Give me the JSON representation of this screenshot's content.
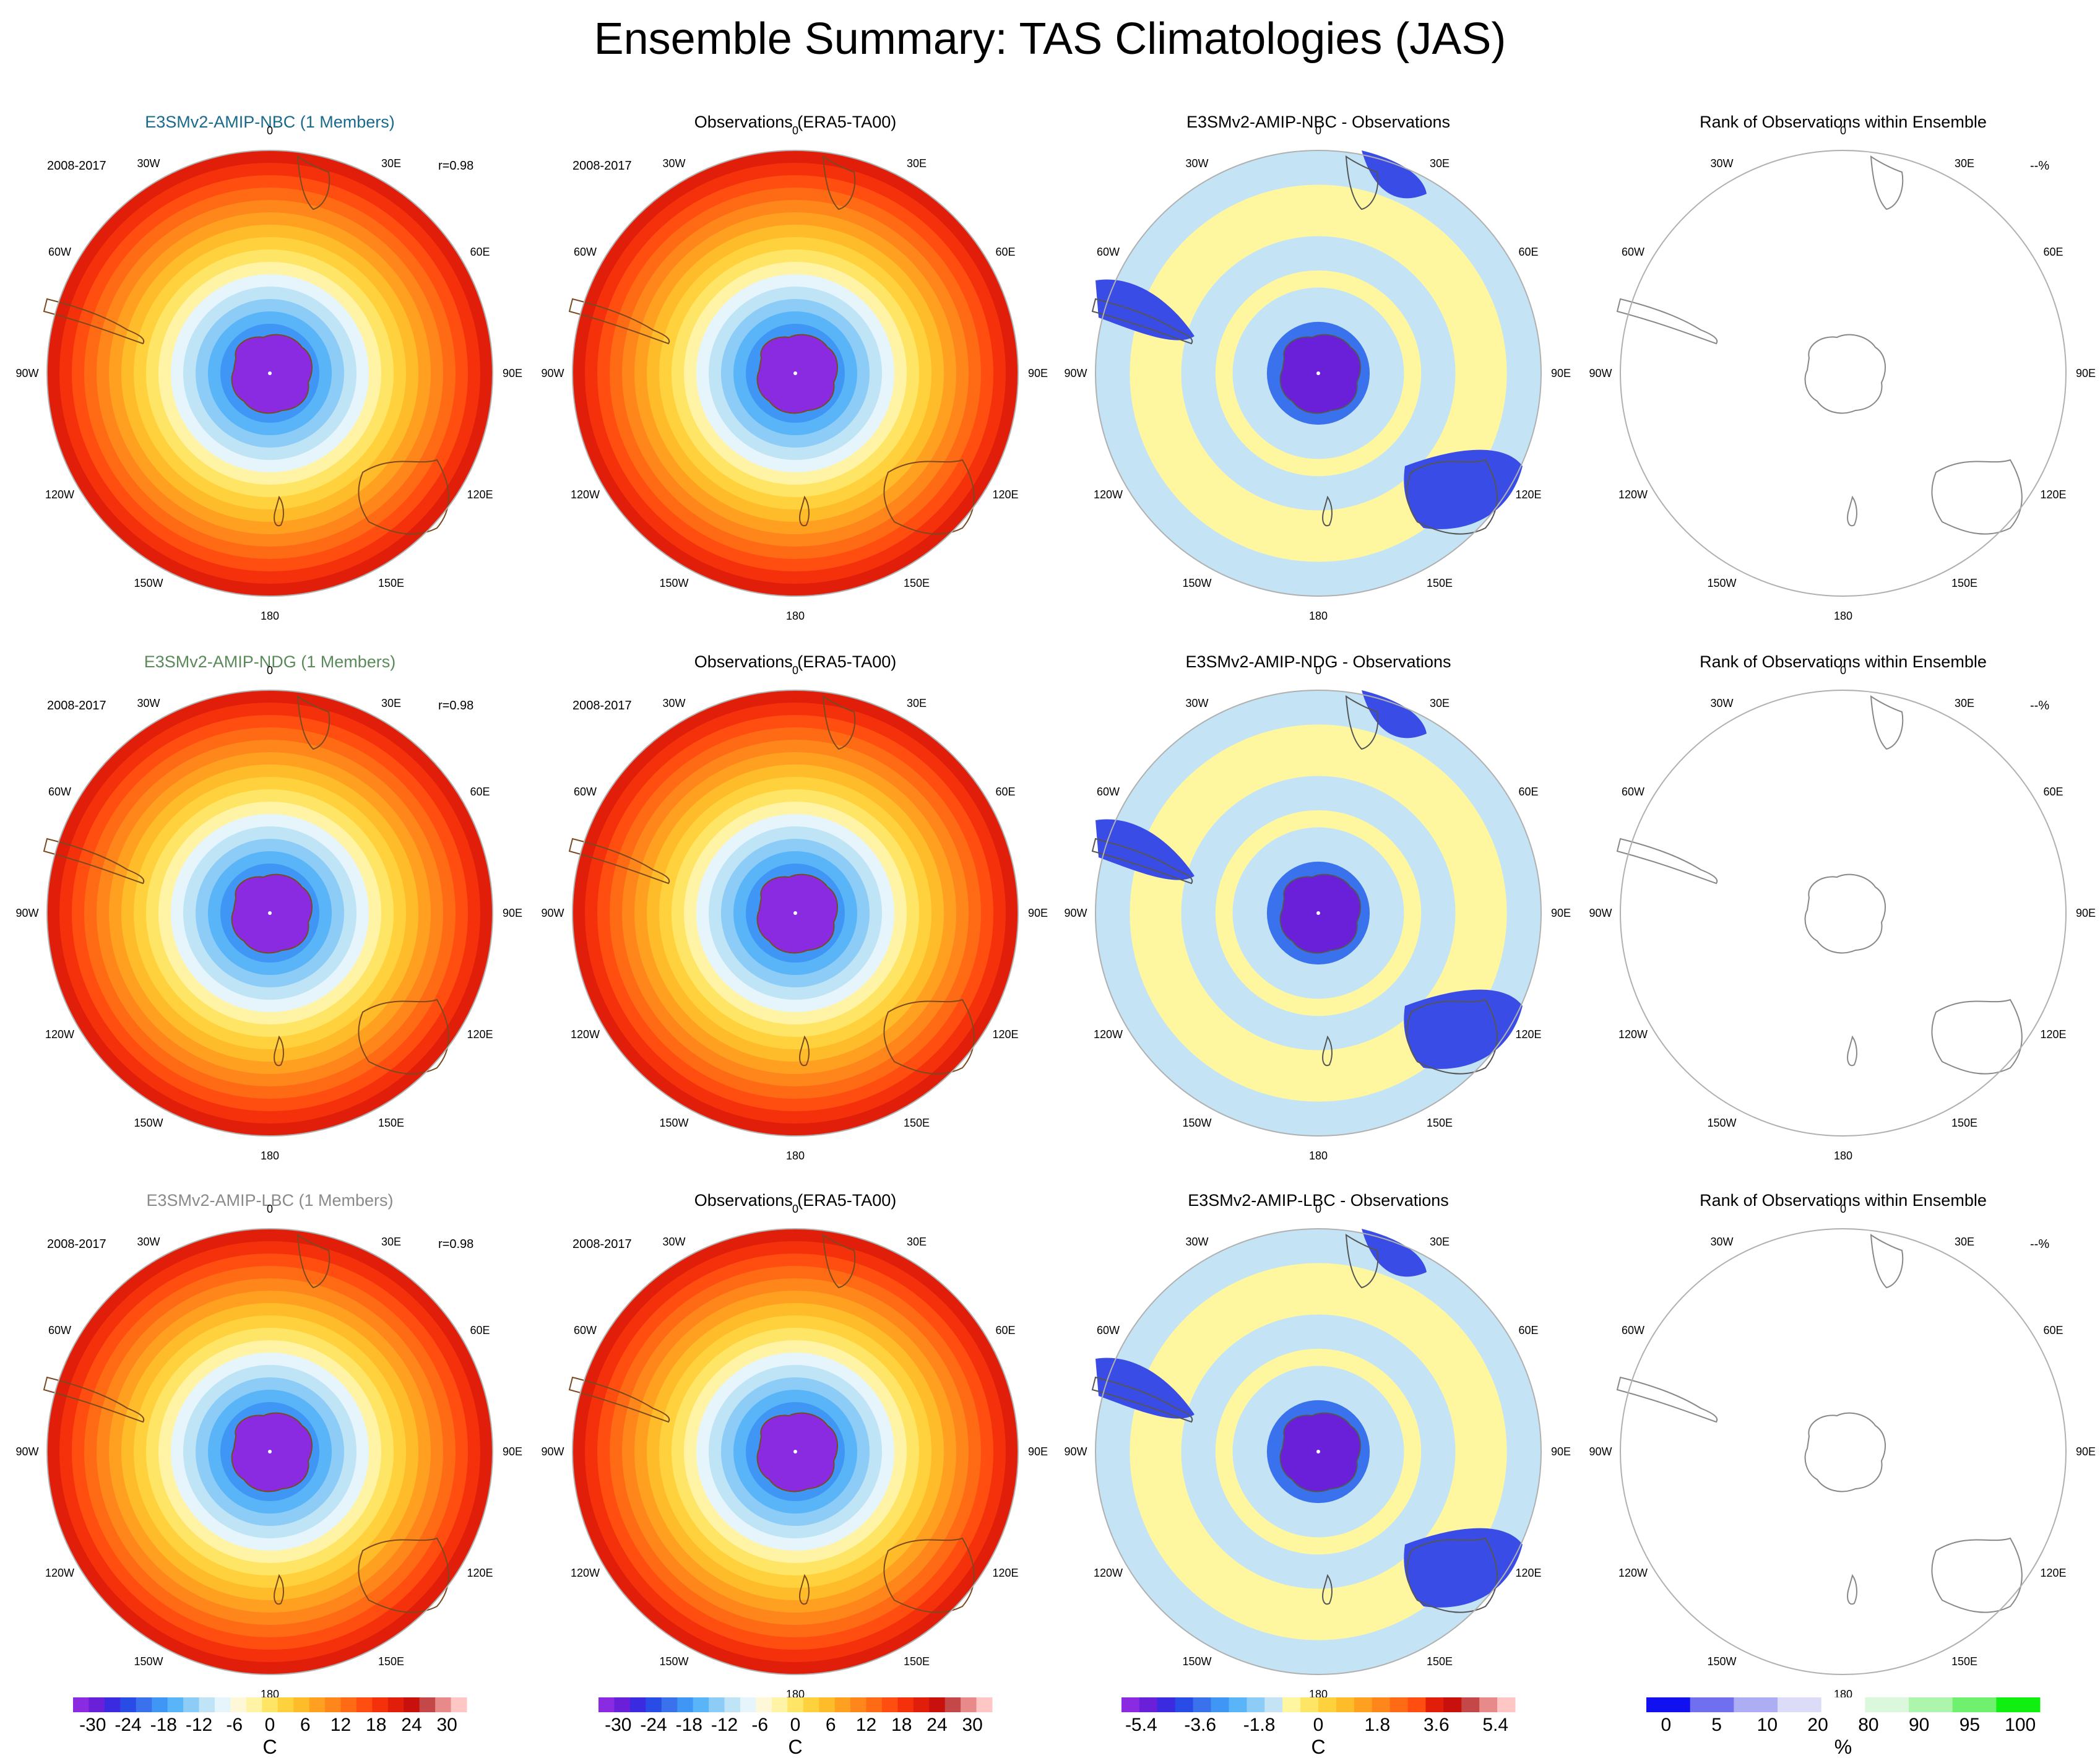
{
  "figure": {
    "title": "Ensemble Summary: TAS Climatologies (JAS)",
    "lon_labels": [
      "0",
      "30E",
      "60E",
      "90E",
      "120E",
      "150E",
      "180",
      "150W",
      "120W",
      "90W",
      "60W",
      "30W"
    ],
    "rows": [
      {
        "model_title": "E3SMv2-AMIP-NBC (1 Members)",
        "model_title_color": "#1a6a8c",
        "period": "2008-2017",
        "correlation": "r=0.98",
        "obs_title": "Observations (ERA5-TA00)",
        "obs_period": "2008-2017",
        "diff_title": "E3SMv2-AMIP-NBC - Observations",
        "rank_title": "Rank of Observations within Ensemble",
        "rank_value": "--%"
      },
      {
        "model_title": "E3SMv2-AMIP-NDG (1 Members)",
        "model_title_color": "#5a8a5a",
        "period": "2008-2017",
        "correlation": "r=0.98",
        "obs_title": "Observations (ERA5-TA00)",
        "obs_period": "2008-2017",
        "diff_title": "E3SMv2-AMIP-NDG - Observations",
        "rank_title": "Rank of Observations within Ensemble",
        "rank_value": "--%"
      },
      {
        "model_title": "E3SMv2-AMIP-LBC (1 Members)",
        "model_title_color": "#8a8a8a",
        "period": "2008-2017",
        "correlation": "r=0.98",
        "obs_title": "Observations (ERA5-TA00)",
        "obs_period": "2008-2017",
        "diff_title": "E3SMv2-AMIP-LBC - Observations",
        "rank_title": "Rank of Observations within Ensemble",
        "rank_value": "--%"
      }
    ],
    "colorbars": [
      {
        "unit": "C",
        "labels": [
          "-30",
          "-24",
          "-18",
          "-12",
          "-6",
          "0",
          "6",
          "12",
          "18",
          "24",
          "30"
        ],
        "colors": [
          "#8a2be2",
          "#6a1fd9",
          "#3a2ae0",
          "#2a4ce6",
          "#3a72ee",
          "#3f96f4",
          "#5ab4f8",
          "#8dccf6",
          "#bfe4f6",
          "#e6f4fb",
          "#fff8d8",
          "#fff3a6",
          "#ffe566",
          "#ffd23d",
          "#ffbc2a",
          "#ffa020",
          "#ff861a",
          "#ff6a14",
          "#ff4e10",
          "#f5310c",
          "#e01e0a",
          "#c8100c",
          "#c44848",
          "#e88a8a",
          "#ffc6c6"
        ]
      },
      {
        "unit": "C",
        "labels": [
          "-30",
          "-24",
          "-18",
          "-12",
          "-6",
          "0",
          "6",
          "12",
          "18",
          "24",
          "30"
        ],
        "colors": [
          "#8a2be2",
          "#6a1fd9",
          "#3a2ae0",
          "#2a4ce6",
          "#3a72ee",
          "#3f96f4",
          "#5ab4f8",
          "#8dccf6",
          "#bfe4f6",
          "#e6f4fb",
          "#fff8d8",
          "#fff3a6",
          "#ffe566",
          "#ffd23d",
          "#ffbc2a",
          "#ffa020",
          "#ff861a",
          "#ff6a14",
          "#ff4e10",
          "#f5310c",
          "#e01e0a",
          "#c8100c",
          "#c44848",
          "#e88a8a",
          "#ffc6c6"
        ]
      },
      {
        "unit": "C",
        "labels": [
          "-5.4",
          "-3.6",
          "-1.8",
          "0",
          "1.8",
          "3.6",
          "5.4"
        ],
        "colors": [
          "#8a2be2",
          "#6a1fd9",
          "#3a2ae0",
          "#2a4ce6",
          "#3a72ee",
          "#3f96f4",
          "#5ab4f8",
          "#8dccf6",
          "#c4e4f6",
          "#fff6a0",
          "#ffe566",
          "#ffd23d",
          "#ffbc2a",
          "#ffa020",
          "#ff861a",
          "#ff6a14",
          "#ff4e10",
          "#e01e0a",
          "#c8100c",
          "#c44848",
          "#e88a8a",
          "#ffc6c6"
        ]
      },
      {
        "unit": "%",
        "labels": [
          "0",
          "5",
          "10",
          "20",
          "80",
          "90",
          "95",
          "100"
        ],
        "colors": [
          "#1010f0",
          "#6f6ff0",
          "#adadf4",
          "#dcdcf8",
          "#ffffff",
          "#dcf8dc",
          "#adf4ad",
          "#6ff06f",
          "#10f010"
        ]
      }
    ]
  }
}
